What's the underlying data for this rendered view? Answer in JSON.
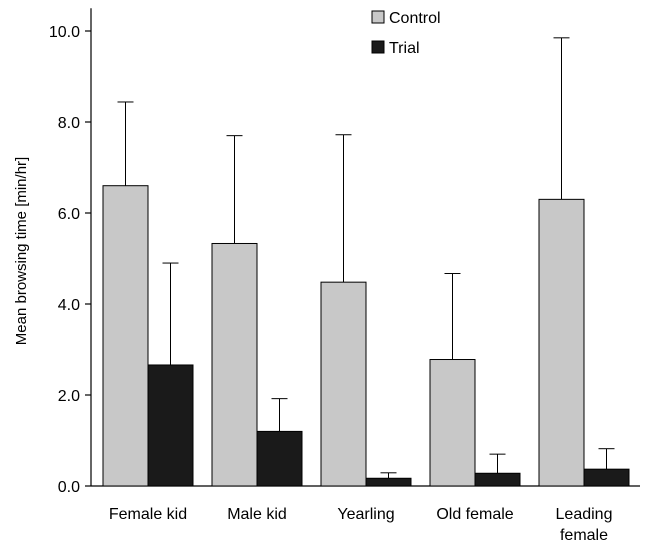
{
  "colors": {
    "control": "#c8c8c8",
    "trial": "#1a1a1a",
    "axis": "#000000",
    "error_bar": "#000000"
  },
  "chart_data": {
    "type": "bar",
    "title": "",
    "xlabel": "",
    "ylabel": "Mean browsing time [min/hr]",
    "ylim": [
      0,
      10.5
    ],
    "yticks": [
      0,
      2,
      4,
      6,
      8,
      10
    ],
    "ytick_labels": [
      "0.0",
      "2.0",
      "4.0",
      "6.0",
      "8.0",
      "10.0"
    ],
    "grid": false,
    "legend_position": "top-center",
    "categories": [
      [
        "Female kid"
      ],
      [
        "Male kid"
      ],
      [
        "Yearling"
      ],
      [
        "Old female"
      ],
      [
        "Leading",
        "female"
      ]
    ],
    "series": [
      {
        "name": "Control",
        "color": "#c8c8c8",
        "values": [
          6.6,
          5.33,
          4.48,
          2.78,
          6.3
        ],
        "error_upper": [
          8.44,
          7.7,
          7.72,
          4.67,
          9.85
        ]
      },
      {
        "name": "Trial",
        "color": "#1a1a1a",
        "values": [
          2.66,
          1.2,
          0.17,
          0.28,
          0.37
        ],
        "error_upper": [
          4.9,
          1.92,
          0.29,
          0.7,
          0.82
        ]
      }
    ]
  }
}
